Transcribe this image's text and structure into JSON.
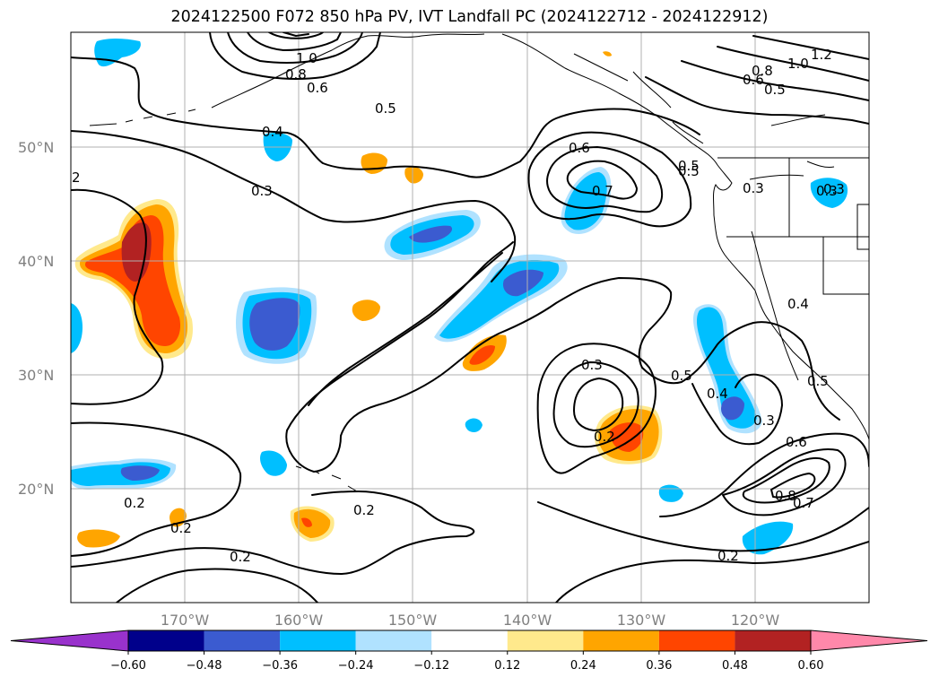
{
  "title": "2024122500 F072 850 hPa PV, IVT Landfall PC (2024122712 - 2024122912)",
  "lat_labels": [
    "50°N",
    "40°N",
    "30°N",
    "20°N"
  ],
  "lon_labels": [
    "170°W",
    "160°W",
    "150°W",
    "140°W",
    "130°W",
    "120°W"
  ],
  "colorbar": {
    "ticks": [
      "−0.60",
      "−0.48",
      "−0.36",
      "−0.24",
      "−0.12",
      "0.12",
      "0.24",
      "0.36",
      "0.48",
      "0.60"
    ],
    "colors": [
      "#9932cc",
      "#00008b",
      "#3b5bd0",
      "#00bfff",
      "#b0e2ff",
      "#ffffff",
      "#ffe98c",
      "#ffa500",
      "#ff4500",
      "#b22222",
      "#ff88aa"
    ]
  },
  "contour_labels": [
    "2",
    "1.0",
    "0.8",
    "0.6",
    "0.5",
    "0.4",
    "0.3",
    "0.6",
    "0.7",
    "0.5",
    "0.8",
    "1.0",
    "1.2",
    "0.6",
    "0.5",
    "0.3",
    "0.3",
    "0.4",
    "0.5",
    "0.3",
    "0.5",
    "0.4",
    "0.3",
    "0.2",
    "0.6",
    "0.8",
    "0.7",
    "0.2",
    "0.2",
    "0.2",
    "0.2",
    "0.2",
    "0.3",
    "0.5"
  ],
  "shading_colors": {
    "light_blue": "#b0e2ff",
    "blue": "#00bfff",
    "royal": "#3b5bd0",
    "light_yellow": "#ffe98c",
    "orange": "#ffa500",
    "red_orange": "#ff4500",
    "dark_red": "#b22222"
  }
}
